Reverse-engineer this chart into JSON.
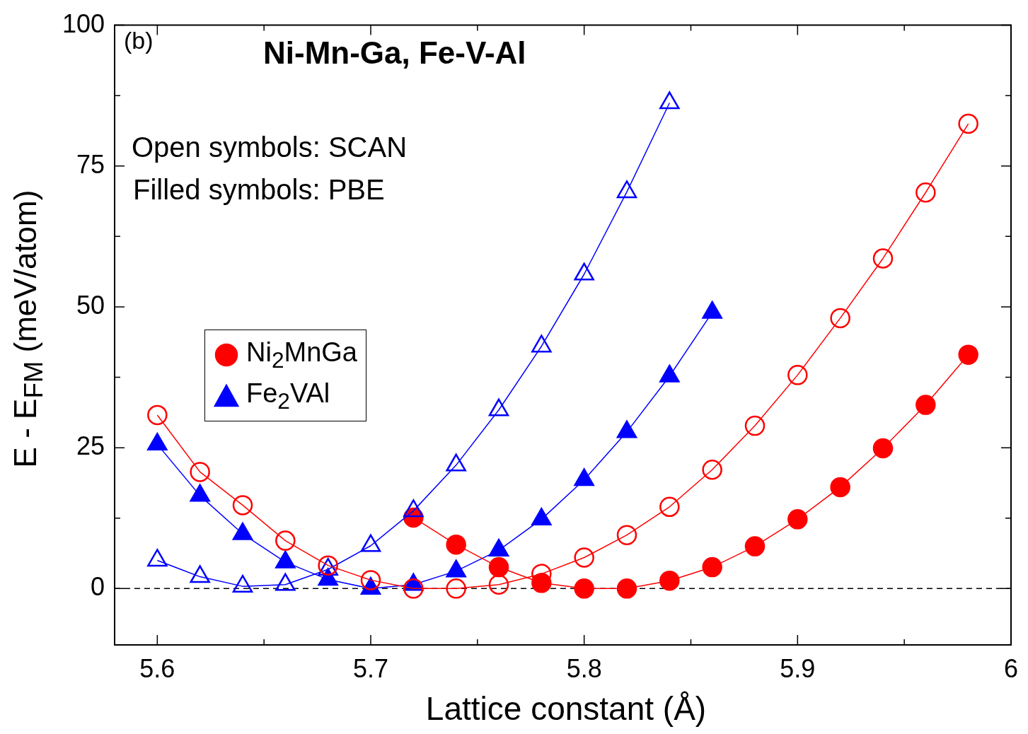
{
  "chart_data": {
    "type": "line",
    "title": "Ni-Mn-Ga,  Fe-V-Al",
    "xlabel": "Lattice constant (Å)",
    "ylabel": "E - E$_{FM}$ (meV/atom)",
    "annotations": [
      "(b)",
      "Open symbols: SCAN",
      "Filled symbols: PBE"
    ],
    "xlim": [
      5.58,
      6.0
    ],
    "xticks": [
      5.6,
      {
        "value": 5.65,
        "label": null
      },
      5.7,
      {
        "value": 5.75,
        "label": null
      },
      5.8,
      {
        "value": 5.85,
        "label": null
      },
      5.9,
      {
        "value": 5.95,
        "label": null
      },
      6
    ],
    "ylim": [
      -10,
      100
    ],
    "yticks": [
      0,
      {
        "value": 12.5,
        "label": null
      },
      25,
      {
        "value": 37.5,
        "label": null
      },
      50,
      {
        "value": 62.5,
        "label": null
      },
      75,
      {
        "value": 87.5,
        "label": null
      },
      100
    ],
    "grid": false,
    "legend": "left",
    "line_style": "solid",
    "ref_lines": [
      {
        "axis": "y",
        "value": 0,
        "color": "#000000",
        "line_style": "dashed"
      }
    ],
    "series": [
      {
        "color": "#ff0000",
        "marker": "circle",
        "x": [
          5.6,
          5.62,
          5.64,
          5.66,
          5.68,
          5.7,
          5.72,
          5.74,
          5.76,
          5.78,
          5.8,
          5.82,
          5.84,
          5.86,
          5.88,
          5.9,
          5.92,
          5.94,
          5.96,
          5.98
        ],
        "values": [
          30.8,
          20.7,
          14.8,
          8.5,
          4.1,
          1.5,
          0,
          0,
          0.7,
          2.6,
          5.5,
          9.5,
          14.5,
          21.1,
          28.9,
          37.9,
          48.0,
          58.6,
          70.3,
          82.5
        ]
      },
      {
        "name": "Ni$_{2}$MnGa",
        "color": "#ff0000",
        "marker": "circle",
        "x": [
          5.72,
          5.74,
          5.76,
          5.78,
          5.8,
          5.82,
          5.84,
          5.86,
          5.88,
          5.9,
          5.92,
          5.94,
          5.96,
          5.98
        ],
        "values": [
          12.6,
          7.8,
          3.8,
          1.0,
          0,
          0,
          1.4,
          3.8,
          7.5,
          12.3,
          18.0,
          24.9,
          32.6,
          41.5
        ]
      },
      {
        "color": "#0000ff",
        "marker": "triangle",
        "x": [
          5.6,
          5.62,
          5.64,
          5.66,
          5.68,
          5.7,
          5.72,
          5.74,
          5.76,
          5.78,
          5.8,
          5.82,
          5.84
        ],
        "values": [
          5.0,
          2.1,
          0.4,
          0.7,
          3.4,
          7.6,
          13.8,
          21.9,
          31.7,
          43.0,
          55.8,
          70.4,
          86.2
        ]
      },
      {
        "name": "Fe$_{2}$VAl",
        "color": "#0000ff",
        "marker": "triangle",
        "x": [
          5.6,
          5.62,
          5.64,
          5.66,
          5.68,
          5.7,
          5.72,
          5.74,
          5.76,
          5.78,
          5.8,
          5.82,
          5.84,
          5.86
        ],
        "values": [
          25.6,
          16.5,
          9.7,
          4.7,
          1.6,
          0,
          0.7,
          3.1,
          6.8,
          12.3,
          19.3,
          27.8,
          37.7,
          49.0
        ]
      }
    ]
  }
}
